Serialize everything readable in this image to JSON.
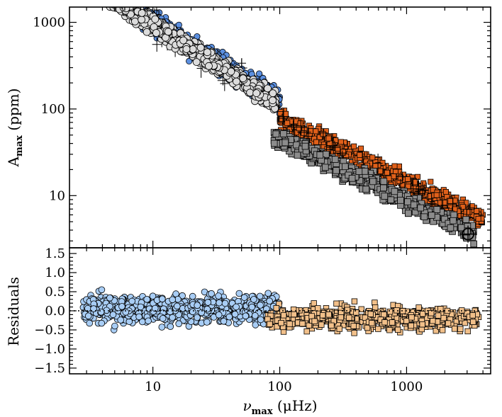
{
  "chart_data": [
    {
      "type": "scatter",
      "panel": "top",
      "xscale": "log",
      "yscale": "log",
      "xlim": [
        2.2,
        4600
      ],
      "ylim": [
        2.5,
        1500
      ],
      "ylabel_main": "A",
      "ylabel_sub": "max",
      "ylabel_unit": " (ppm)",
      "yticks": [
        10,
        100,
        1000
      ],
      "ytick_labels": [
        "10",
        "100",
        "1000"
      ],
      "series": [
        {
          "name": "observed low-frequency (blue circles)",
          "marker": "circle",
          "color": "#5b8fe0",
          "trend": "A = 8500 * nu^-0.92"
        },
        {
          "name": "observed high-frequency (orange squares)",
          "marker": "square",
          "color": "#e0601a",
          "trend": "A = 2100 * nu^-0.72"
        },
        {
          "name": "model low-frequency (light grey circles)",
          "marker": "circle",
          "color": "#dcdcdc",
          "trend": "A = 7000 * nu^-0.92"
        },
        {
          "name": "model high-frequency (dark grey squares)",
          "marker": "square",
          "color": "#8c8c8c",
          "trend": "A = 1400 * nu^-0.72"
        }
      ],
      "annotation": {
        "type": "circled-cross",
        "x": 3050,
        "y": 3.6
      }
    },
    {
      "type": "scatter",
      "panel": "bottom",
      "xscale": "log",
      "xlim": [
        2.2,
        4600
      ],
      "ylim": [
        -1.65,
        1.65
      ],
      "ylabel": "Residuals",
      "xlabel_main": "ν",
      "xlabel_sub": "max",
      "xlabel_unit": " (μHz)",
      "xticks": [
        10,
        100,
        1000
      ],
      "xtick_labels": [
        "10",
        "100",
        "1000"
      ],
      "yticks": [
        -1.5,
        -1.0,
        -0.5,
        0.0,
        0.5,
        1.0,
        1.5
      ],
      "ytick_labels": [
        "−1.5",
        "−1.0",
        "−0.5",
        "0.0",
        "0.5",
        "1.0",
        "1.5"
      ],
      "reference_line": {
        "y": 0.0,
        "style": "dotted"
      },
      "series": [
        {
          "name": "low-frequency residuals (light blue circles)",
          "marker": "circle",
          "color": "#a8cdf5",
          "x_range": [
            2.8,
            100
          ],
          "mean": 0.05,
          "spread": 0.35
        },
        {
          "name": "high-frequency residuals (tan squares)",
          "marker": "square",
          "color": "#f2c08a",
          "x_range": [
            80,
            3700
          ],
          "mean": -0.2,
          "spread": 0.3
        }
      ]
    }
  ]
}
